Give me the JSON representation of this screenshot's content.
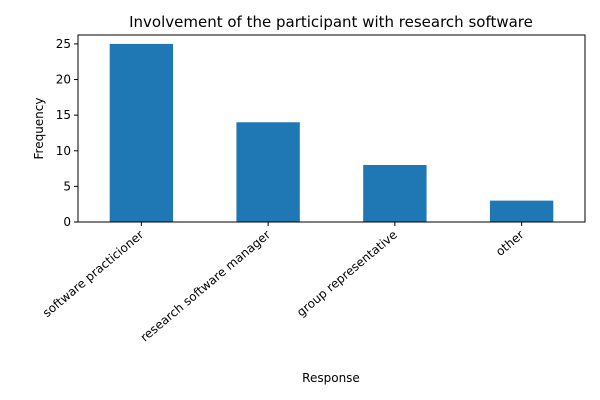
{
  "chart_data": {
    "type": "bar",
    "title": "Involvement of the participant with research software",
    "xlabel": "Response",
    "ylabel": "Frequency",
    "categories": [
      "software practicioner",
      "research software manager",
      "group representative",
      "other"
    ],
    "values": [
      25,
      14,
      8,
      3
    ],
    "ylim": [
      0,
      26.25
    ],
    "yticks": [
      0,
      5,
      10,
      15,
      20,
      25
    ],
    "grid": false,
    "legend": "none",
    "bar_color": "#1f77b4"
  }
}
